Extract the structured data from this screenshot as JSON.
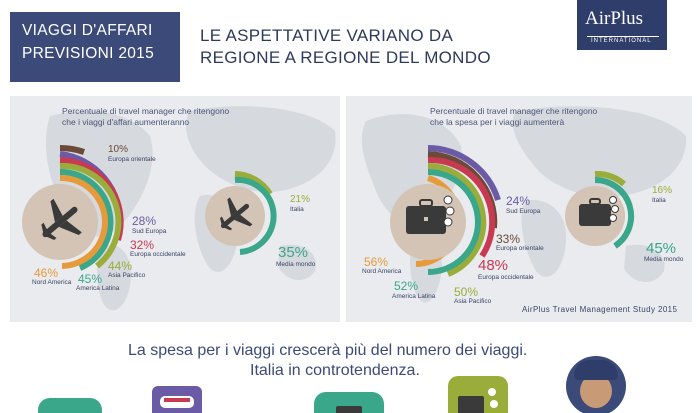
{
  "header": {
    "title_line1": "VIAGGI D'AFFARI",
    "title_line2": "PREVISIONI 2015",
    "subtitle_line1": "LE ASPETTATIVE VARIANO DA",
    "subtitle_line2": "REGIONE A REGIONE DEL MONDO"
  },
  "logo": {
    "name": "AirPlus",
    "sub": "INTERNATIONAL"
  },
  "left_panel": {
    "caption_line1": "Percentuale di travel manager che ritengono",
    "caption_line2": "che i viaggi d'affari aumenteranno",
    "items": [
      {
        "pct": "10%",
        "label": "Europa orientale",
        "color": "#6b4a3a"
      },
      {
        "pct": "28%",
        "label": "Sud Europa",
        "color": "#6b5aa6"
      },
      {
        "pct": "32%",
        "label": "Europa occidentale",
        "color": "#c83a52"
      },
      {
        "pct": "44%",
        "label": "Asia Pacifico",
        "color": "#9aac3a"
      },
      {
        "pct": "45%",
        "label": "America Latina",
        "color": "#3aa78a"
      },
      {
        "pct": "46%",
        "label": "Nord America",
        "color": "#e79a3a"
      }
    ],
    "italy": {
      "pct": "21%",
      "label": "Italia",
      "color": "#9aac3a"
    },
    "world": {
      "pct": "35%",
      "label": "Media mondo",
      "color": "#3aa78a"
    }
  },
  "right_panel": {
    "caption_line1": "Percentuale di travel manager che ritengono",
    "caption_line2": "che la spesa per i viaggi aumenterà",
    "items": [
      {
        "pct": "24%",
        "label": "Sud Europa",
        "color": "#6b5aa6"
      },
      {
        "pct": "33%",
        "label": "Europa orientale",
        "color": "#6b4a3a"
      },
      {
        "pct": "48%",
        "label": "Europa occidentale",
        "color": "#c83a52"
      },
      {
        "pct": "50%",
        "label": "Asia Pacifico",
        "color": "#9aac3a"
      },
      {
        "pct": "52%",
        "label": "America Latina",
        "color": "#3aa78a"
      },
      {
        "pct": "56%",
        "label": "Nord America",
        "color": "#e79a3a"
      }
    ],
    "italy": {
      "pct": "16%",
      "label": "Italia",
      "color": "#9aac3a"
    },
    "world": {
      "pct": "45%",
      "label": "Media mondo",
      "color": "#3aa78a"
    },
    "footer": "AirPlus Travel Management Study 2015"
  },
  "bottom": {
    "line1": "La spesa per i viaggi crescerà più del numero dei viaggi.",
    "line2": "Italia in controtendenza."
  }
}
